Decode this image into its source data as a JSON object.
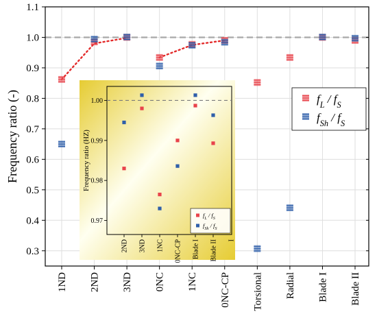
{
  "colors": {
    "series_L": "#e8434b",
    "series_Sh": "#2f5faa",
    "fit_line": "#e32a2a",
    "reference_line": "#a8a8a8",
    "inset_gradient_light": "#fffff0",
    "inset_gradient_dark": "#e6cc33"
  },
  "chart_data": [
    {
      "type": "scatter",
      "ylabel": "Frequency ratio (-)",
      "ylim": [
        0.25,
        1.1
      ],
      "yticks": [
        "0.3",
        "0.4",
        "0.5",
        "0.6",
        "0.7",
        "0.8",
        "0.9",
        "1.0",
        "1.1"
      ],
      "ytick_values": [
        0.3,
        0.4,
        0.5,
        0.6,
        0.7,
        0.8,
        0.9,
        1.0,
        1.1
      ],
      "categories": [
        "1ND",
        "2ND",
        "3ND",
        "0NC",
        "1NC",
        "0NC-CP",
        "Torsional",
        "Radial",
        "Blade I",
        "Blade II"
      ],
      "grid": true,
      "reference_line": 1.0,
      "legend": {
        "placement": "right",
        "entries": [
          {
            "main": "f",
            "sub1": "L",
            "sep": " / ",
            "main2": "f",
            "sub2": "S"
          },
          {
            "main": "f",
            "sub1": "Sh",
            "sep": " / ",
            "main2": "f",
            "sub2": "S"
          }
        ]
      },
      "series": [
        {
          "key": "L",
          "values": [
            0.862,
            0.985,
            1.0,
            0.934,
            0.977,
            0.99,
            0.852,
            0.934,
            1.0,
            0.99
          ]
        },
        {
          "key": "Sh",
          "values": [
            0.65,
            0.994,
            1.001,
            0.906,
            0.974,
            0.984,
            0.307,
            0.441,
            1.001,
            0.997
          ]
        }
      ],
      "fit_line": {
        "style": "dotted",
        "series": "L",
        "categories": [
          "1ND",
          "2ND",
          "3ND"
        ],
        "values": [
          0.862,
          0.98,
          0.998
        ],
        "categories2": [
          "0NC",
          "1NC",
          "0NC-CP"
        ],
        "values2": [
          0.934,
          0.975,
          0.99
        ]
      }
    },
    {
      "type": "scatter",
      "ylabel": "Frequency ratio (HZ)",
      "ylim": [
        0.9665,
        1.0035
      ],
      "yticks": [
        "0.97",
        "0.98",
        "0.99",
        "1.00"
      ],
      "ytick_values": [
        0.97,
        0.98,
        0.99,
        1.0
      ],
      "categories": [
        "2ND",
        "3ND",
        "1NC",
        "0NC-CP",
        "Blade I",
        "Blade II"
      ],
      "extra_tick_label": "I",
      "reference_line": 1.0,
      "legend": {
        "placement": "bottom-right",
        "entries": [
          {
            "main": "f",
            "sub1": "L",
            "sep": " / ",
            "main2": "f",
            "sub2": "S"
          },
          {
            "main": "f",
            "sub1": "Sh",
            "sep": " / ",
            "main2": "f",
            "sub2": "S"
          }
        ]
      },
      "series": [
        {
          "key": "L",
          "x": [
            0,
            1,
            2,
            3,
            4,
            5
          ],
          "values": [
            0.983,
            0.998,
            0.9765,
            0.99,
            0.9987,
            0.9893
          ]
        },
        {
          "key": "Sh",
          "x": [
            0,
            1,
            2,
            3,
            4,
            5
          ],
          "values": [
            0.9945,
            1.0013,
            0.973,
            0.9836,
            1.0013,
            0.9963
          ]
        }
      ]
    }
  ]
}
